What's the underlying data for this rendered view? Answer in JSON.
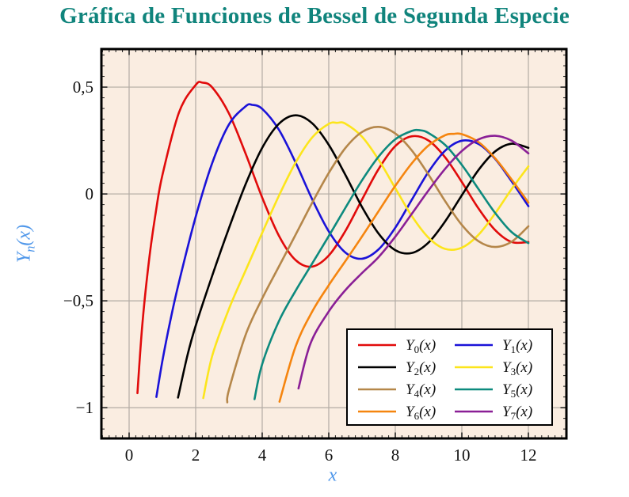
{
  "colors": {
    "title": "#10847c",
    "axis_label": "#4f97ea",
    "tick_label": "#111111",
    "plot_bg": "#faede1",
    "grid": "#b2aba4",
    "frame": "#000000",
    "tick": "#1a1a1a",
    "legend_bg": "#ffffff",
    "legend_border": "#000000"
  },
  "chart_data": {
    "type": "line",
    "title": "Gráfica de Funciones de Bessel de Segunda Especie",
    "xlabel": "x",
    "ylabel": "Yn(x)",
    "ylabel_parts": {
      "base": "Y",
      "sub": "n",
      "arg": "(x)"
    },
    "xlim": [
      -0.833,
      13.143
    ],
    "ylim": [
      -1.144,
      0.678
    ],
    "xticks": [
      0,
      2,
      4,
      6,
      8,
      10,
      12
    ],
    "xtick_labels": [
      "0",
      "2",
      "4",
      "6",
      "8",
      "10",
      "12"
    ],
    "yticks": [
      0.5,
      0,
      -0.5,
      -1
    ],
    "ytick_labels": [
      "0,5",
      "0",
      "−0,5",
      "−1"
    ],
    "minor_x_step": 0.2,
    "minor_y_step": 0.05,
    "grid": true,
    "legend": {
      "position": "lower right",
      "columns": 2
    },
    "series": [
      {
        "name": "Y0(x)",
        "name_parts": {
          "base": "Y",
          "sub": "0",
          "arg": "(x)"
        },
        "color": "#e10b0b",
        "points": [
          [
            0.25,
            -0.932
          ],
          [
            0.4,
            -0.606
          ],
          [
            0.6,
            -0.308
          ],
          [
            0.8,
            -0.087
          ],
          [
            1,
            0.088
          ],
          [
            1.5,
            0.382
          ],
          [
            2,
            0.51
          ],
          [
            2.2,
            0.521
          ],
          [
            2.5,
            0.498
          ],
          [
            3,
            0.377
          ],
          [
            3.5,
            0.189
          ],
          [
            4,
            -0.017
          ],
          [
            4.5,
            -0.195
          ],
          [
            5,
            -0.309
          ],
          [
            5.5,
            -0.34
          ],
          [
            6,
            -0.288
          ],
          [
            6.5,
            -0.173
          ],
          [
            7,
            -0.026
          ],
          [
            7.5,
            0.117
          ],
          [
            8,
            0.224
          ],
          [
            8.5,
            0.27
          ],
          [
            9,
            0.25
          ],
          [
            9.5,
            0.171
          ],
          [
            10,
            0.056
          ],
          [
            10.5,
            -0.068
          ],
          [
            11,
            -0.169
          ],
          [
            11.5,
            -0.225
          ],
          [
            12,
            -0.225
          ]
        ]
      },
      {
        "name": "Y1(x)",
        "name_parts": {
          "base": "Y",
          "sub": "1",
          "arg": "(x)"
        },
        "color": "#1a12d8",
        "points": [
          [
            0.82,
            -0.95
          ],
          [
            1,
            -0.781
          ],
          [
            1.25,
            -0.584
          ],
          [
            1.5,
            -0.412
          ],
          [
            2,
            -0.107
          ],
          [
            2.5,
            0.146
          ],
          [
            3,
            0.325
          ],
          [
            3.5,
            0.41
          ],
          [
            3.7,
            0.417
          ],
          [
            4,
            0.398
          ],
          [
            4.5,
            0.301
          ],
          [
            5,
            0.148
          ],
          [
            5.5,
            -0.024
          ],
          [
            6,
            -0.175
          ],
          [
            6.5,
            -0.274
          ],
          [
            7,
            -0.303
          ],
          [
            7.5,
            -0.259
          ],
          [
            8,
            -0.158
          ],
          [
            8.5,
            -0.026
          ],
          [
            9,
            0.104
          ],
          [
            9.5,
            0.203
          ],
          [
            10,
            0.249
          ],
          [
            10.5,
            0.234
          ],
          [
            11,
            0.164
          ],
          [
            11.5,
            0.058
          ],
          [
            12,
            -0.057
          ]
        ]
      },
      {
        "name": "Y2(x)",
        "name_parts": {
          "base": "Y",
          "sub": "2",
          "arg": "(x)"
        },
        "color": "#000000",
        "points": [
          [
            1.47,
            -0.953
          ],
          [
            1.75,
            -0.757
          ],
          [
            2,
            -0.617
          ],
          [
            2.5,
            -0.381
          ],
          [
            3,
            -0.16
          ],
          [
            3.5,
            0.045
          ],
          [
            4,
            0.216
          ],
          [
            4.5,
            0.328
          ],
          [
            5,
            0.368
          ],
          [
            5.5,
            0.331
          ],
          [
            6,
            0.23
          ],
          [
            6.5,
            0.089
          ],
          [
            7,
            -0.061
          ],
          [
            7.5,
            -0.186
          ],
          [
            8,
            -0.263
          ],
          [
            8.5,
            -0.276
          ],
          [
            9,
            -0.227
          ],
          [
            9.5,
            -0.128
          ],
          [
            10,
            -0.006
          ],
          [
            10.5,
            0.112
          ],
          [
            11,
            0.199
          ],
          [
            11.5,
            0.235
          ],
          [
            12,
            0.216
          ]
        ]
      },
      {
        "name": "Y3(x)",
        "name_parts": {
          "base": "Y",
          "sub": "3",
          "arg": "(x)"
        },
        "color": "#fce51c",
        "points": [
          [
            2.23,
            -0.955
          ],
          [
            2.5,
            -0.756
          ],
          [
            3,
            -0.538
          ],
          [
            3.5,
            -0.358
          ],
          [
            4,
            -0.182
          ],
          [
            4.5,
            -0.009
          ],
          [
            5,
            0.146
          ],
          [
            5.5,
            0.264
          ],
          [
            6,
            0.328
          ],
          [
            6.25,
            0.333
          ],
          [
            6.5,
            0.329
          ],
          [
            7,
            0.268
          ],
          [
            7.5,
            0.16
          ],
          [
            8,
            0.027
          ],
          [
            8.5,
            -0.104
          ],
          [
            9,
            -0.205
          ],
          [
            9.5,
            -0.257
          ],
          [
            10,
            -0.251
          ],
          [
            10.5,
            -0.191
          ],
          [
            11,
            -0.091
          ],
          [
            11.5,
            0.024
          ],
          [
            12,
            0.129
          ]
        ]
      },
      {
        "name": "Y4(x)",
        "name_parts": {
          "base": "Y",
          "sub": "4",
          "arg": "(x)"
        },
        "color": "#b5874a",
        "points": [
          [
            2.95,
            -0.975
          ],
          [
            3,
            -0.917
          ],
          [
            3.5,
            -0.66
          ],
          [
            4,
            -0.489
          ],
          [
            4.5,
            -0.34
          ],
          [
            5,
            -0.192
          ],
          [
            5.5,
            -0.042
          ],
          [
            6,
            0.098
          ],
          [
            6.5,
            0.215
          ],
          [
            7,
            0.29
          ],
          [
            7.5,
            0.314
          ],
          [
            8,
            0.283
          ],
          [
            8.5,
            0.203
          ],
          [
            9,
            0.09
          ],
          [
            9.5,
            -0.034
          ],
          [
            10,
            -0.145
          ],
          [
            10.5,
            -0.221
          ],
          [
            11,
            -0.248
          ],
          [
            11.5,
            -0.223
          ],
          [
            12,
            -0.151
          ]
        ]
      },
      {
        "name": "Y5(x)",
        "name_parts": {
          "base": "Y",
          "sub": "5",
          "arg": "(x)"
        },
        "color": "#0d8a7e",
        "points": [
          [
            3.77,
            -0.96
          ],
          [
            4,
            -0.796
          ],
          [
            4.5,
            -0.596
          ],
          [
            5,
            -0.454
          ],
          [
            5.5,
            -0.326
          ],
          [
            6,
            -0.197
          ],
          [
            6.5,
            -0.065
          ],
          [
            7,
            0.064
          ],
          [
            7.5,
            0.175
          ],
          [
            8,
            0.256
          ],
          [
            8.5,
            0.295
          ],
          [
            8.75,
            0.298
          ],
          [
            9,
            0.285
          ],
          [
            9.5,
            0.229
          ],
          [
            10,
            0.136
          ],
          [
            10.5,
            0.023
          ],
          [
            11,
            -0.089
          ],
          [
            11.5,
            -0.179
          ],
          [
            12,
            -0.23
          ]
        ]
      },
      {
        "name": "Y6(x)",
        "name_parts": {
          "base": "Y",
          "sub": "6",
          "arg": "(x)"
        },
        "color": "#f5850f",
        "points": [
          [
            4.52,
            -0.972
          ],
          [
            5,
            -0.715
          ],
          [
            5.5,
            -0.551
          ],
          [
            6,
            -0.427
          ],
          [
            6.5,
            -0.314
          ],
          [
            7,
            -0.199
          ],
          [
            7.5,
            -0.08
          ],
          [
            8,
            0.038
          ],
          [
            8.5,
            0.144
          ],
          [
            9,
            0.227
          ],
          [
            9.5,
            0.275
          ],
          [
            9.75,
            0.281
          ],
          [
            10,
            0.28
          ],
          [
            10.5,
            0.243
          ],
          [
            11,
            0.167
          ],
          [
            11.5,
            0.067
          ],
          [
            12,
            -0.04
          ]
        ]
      },
      {
        "name": "Y7(x)",
        "name_parts": {
          "base": "Y",
          "sub": "7",
          "arg": "(x)"
        },
        "color": "#8a1f96",
        "points": [
          [
            5.09,
            -0.91
          ],
          [
            5.45,
            -0.7
          ],
          [
            6,
            -0.55
          ],
          [
            6.5,
            -0.45
          ],
          [
            7,
            -0.37
          ],
          [
            7.5,
            -0.295
          ],
          [
            8,
            -0.2
          ],
          [
            8.5,
            -0.092
          ],
          [
            9,
            0.017
          ],
          [
            9.5,
            0.118
          ],
          [
            10,
            0.201
          ],
          [
            10.5,
            0.255
          ],
          [
            11,
            0.272
          ],
          [
            11.5,
            0.249
          ],
          [
            12,
            0.19
          ]
        ]
      }
    ]
  }
}
